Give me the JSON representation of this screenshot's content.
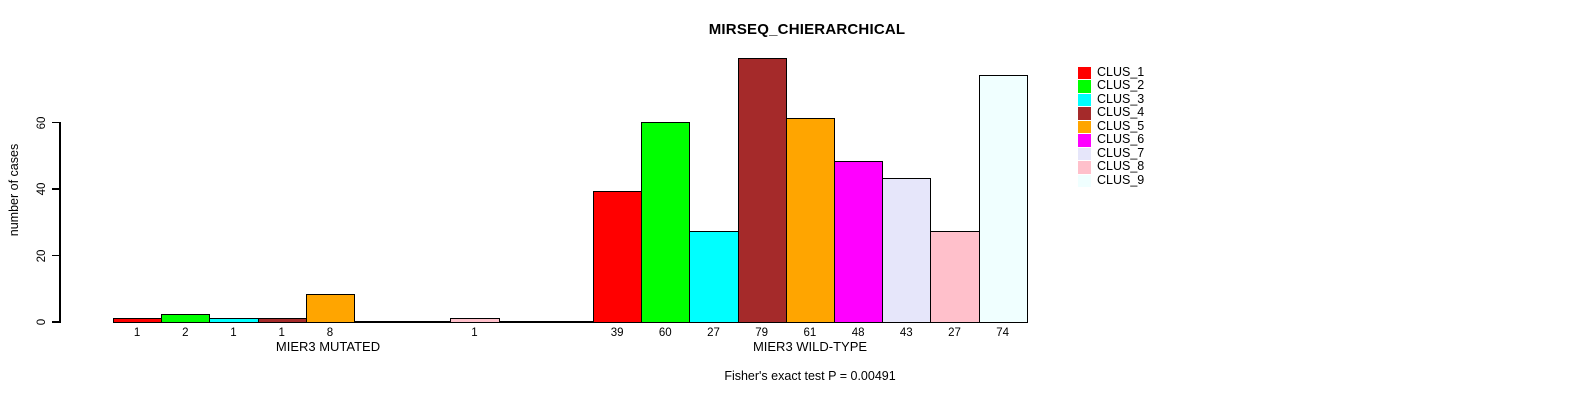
{
  "title": "MIRSEQ_CHIERARCHICAL",
  "ylabel": "number of cases",
  "footer_note": "Fisher's exact test P = 0.00491",
  "axis": {
    "ytick_labels": [
      "0",
      "20",
      "40",
      "60"
    ],
    "ytick_values": [
      0,
      20,
      40,
      60
    ]
  },
  "groups": {
    "mutated_label": "MIER3 MUTATED",
    "wildtype_label": "MIER3 WILD-TYPE"
  },
  "legend": {
    "position": "top-right",
    "items": [
      {
        "label": "CLUS_1",
        "color": "#FF0000"
      },
      {
        "label": "CLUS_2",
        "color": "#00FF00"
      },
      {
        "label": "CLUS_3",
        "color": "#00FFFF"
      },
      {
        "label": "CLUS_4",
        "color": "#A52A2A"
      },
      {
        "label": "CLUS_5",
        "color": "#FFA500"
      },
      {
        "label": "CLUS_6",
        "color": "#FF00FF"
      },
      {
        "label": "CLUS_7",
        "color": "#E6E6FA"
      },
      {
        "label": "CLUS_8",
        "color": "#FFC0CB"
      },
      {
        "label": "CLUS_9",
        "color": "#F0FFFF"
      }
    ]
  },
  "chart_data": {
    "type": "bar",
    "title": "MIRSEQ_CHIERARCHICAL",
    "ylabel": "number of cases",
    "ylim": [
      0,
      79
    ],
    "yticks": [
      0,
      20,
      40,
      60
    ],
    "grid": false,
    "legend_position": "top-right",
    "categories": [
      "CLUS_1",
      "CLUS_2",
      "CLUS_3",
      "CLUS_4",
      "CLUS_5",
      "CLUS_6",
      "CLUS_7",
      "CLUS_8",
      "CLUS_9"
    ],
    "colors": [
      "#FF0000",
      "#00FF00",
      "#00FFFF",
      "#A52A2A",
      "#FFA500",
      "#FF00FF",
      "#E6E6FA",
      "#FFC0CB",
      "#F0FFFF"
    ],
    "groups": [
      {
        "label": "MIER3 MUTATED",
        "values": [
          1,
          2,
          1,
          1,
          8,
          0,
          0,
          1,
          0
        ],
        "bar_labels": [
          "1",
          "2",
          "1",
          "1",
          "8",
          "",
          "",
          "1",
          ""
        ]
      },
      {
        "label": "MIER3 WILD-TYPE",
        "values": [
          39,
          60,
          27,
          79,
          61,
          48,
          43,
          27,
          74
        ],
        "bar_labels": [
          "39",
          "60",
          "27",
          "79",
          "61",
          "48",
          "43",
          "27",
          "74"
        ]
      }
    ],
    "annotation": "Fisher's exact test P = 0.00491"
  }
}
